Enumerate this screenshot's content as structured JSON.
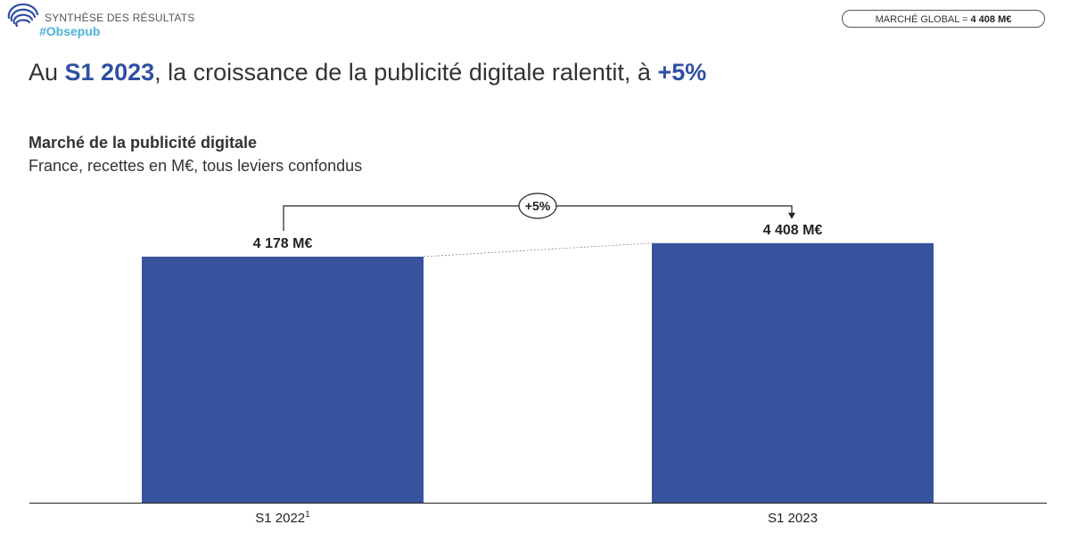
{
  "header": {
    "brand_title": "SYNTHÈSE DES RÉSULTATS",
    "brand_tag": "#Obsepub",
    "market_label": "MARCHÉ GLOBAL = ",
    "market_value": "4 408 M€"
  },
  "headline": {
    "part1": "Au ",
    "highlight1": "S1 2023",
    "part2": ", la croissance de la publicité digitale ralentit, à ",
    "highlight2": "+5%"
  },
  "colors": {
    "bar": "#38539d",
    "accent": "#2f4fa2",
    "tag": "#4fb3d9"
  },
  "chart_data": {
    "type": "bar",
    "title": "Marché de la publicité digitale",
    "subtitle": "France, recettes en M€, tous leviers confondus",
    "categories": [
      "S1 2022",
      "S1 2023"
    ],
    "category_superscripts": [
      "1",
      ""
    ],
    "values": [
      4178,
      4408
    ],
    "data_labels": [
      "4 178 M€",
      "4 408 M€"
    ],
    "growth_label": "+5%",
    "ylim": [
      0,
      4450
    ],
    "xlabel": "",
    "ylabel": ""
  }
}
